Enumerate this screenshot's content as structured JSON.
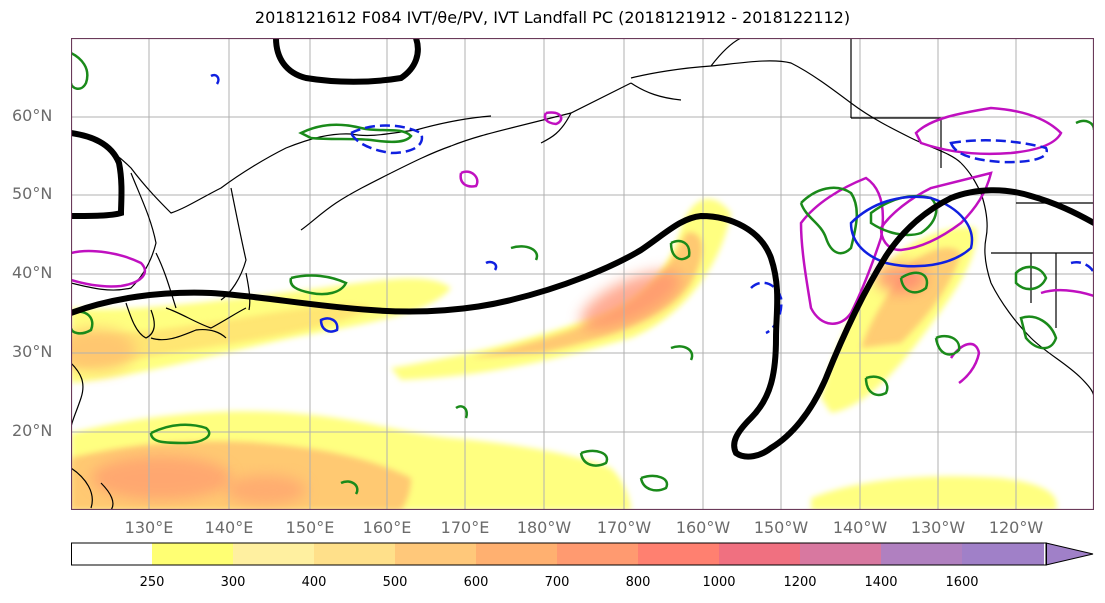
{
  "title": "2018121612 F084 IVT/θe/PV, IVT Landfall PC (2018121912 - 2018122112)",
  "lat_labels": [
    "60°N",
    "50°N",
    "40°N",
    "30°N",
    "20°N"
  ],
  "lon_labels": [
    "130°E",
    "140°E",
    "150°E",
    "160°E",
    "170°E",
    "180°W",
    "170°W",
    "160°W",
    "150°W",
    "140°W",
    "130°W",
    "120°W"
  ],
  "colorbar": {
    "ticks": [
      "250",
      "300",
      "400",
      "500",
      "600",
      "700",
      "800",
      "1000",
      "1200",
      "1400",
      "1600"
    ],
    "colors": [
      "#ffffff",
      "#ffff73",
      "#fff0a0",
      "#ffe08a",
      "#ffc87a",
      "#ffb070",
      "#ff9a70",
      "#ff8070",
      "#f07080",
      "#d878a0",
      "#b080c0",
      "#a080c8"
    ]
  },
  "colors": {
    "land_outline": "#000000",
    "grid": "#b0b0b0",
    "thick_contour": "#000000",
    "green_contour": "#1a8a1a",
    "blue_contour": "#1020e0",
    "magenta_contour": "#c010c0"
  }
}
